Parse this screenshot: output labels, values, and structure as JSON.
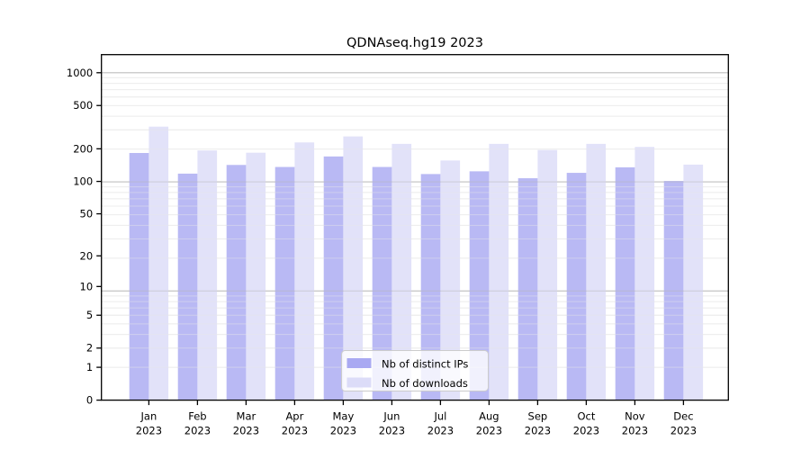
{
  "title": "QDNAseq.hg19 2023",
  "chart_data": {
    "type": "bar",
    "title": "QDNAseq.hg19 2023",
    "scale": "log10(1+value)",
    "grid": true,
    "legend_position": "inside-bottom-center",
    "categories": [
      "Jan",
      "Feb",
      "Mar",
      "Apr",
      "May",
      "Jun",
      "Jul",
      "Aug",
      "Sep",
      "Oct",
      "Nov",
      "Dec"
    ],
    "category_year": "2023",
    "yticks": [
      0,
      1,
      2,
      5,
      10,
      20,
      50,
      100,
      200,
      500,
      1000
    ],
    "ylim": [
      0,
      1430
    ],
    "series": [
      {
        "name": "Nb of distinct IPs",
        "color_hex": "#a9a9f2",
        "values": [
          183,
          118,
          142,
          136,
          170,
          136,
          117,
          124,
          107,
          120,
          135,
          101
        ]
      },
      {
        "name": "Nb of downloads",
        "color_hex": "#dcdcf8",
        "values": [
          320,
          193,
          184,
          229,
          260,
          222,
          156,
          222,
          195,
          222,
          208,
          143
        ]
      }
    ],
    "colors": {
      "axis": "#000000",
      "major_grid": "#c3c3c3",
      "minor_grid": "#ececec",
      "legend_border": "#cccccc"
    }
  }
}
